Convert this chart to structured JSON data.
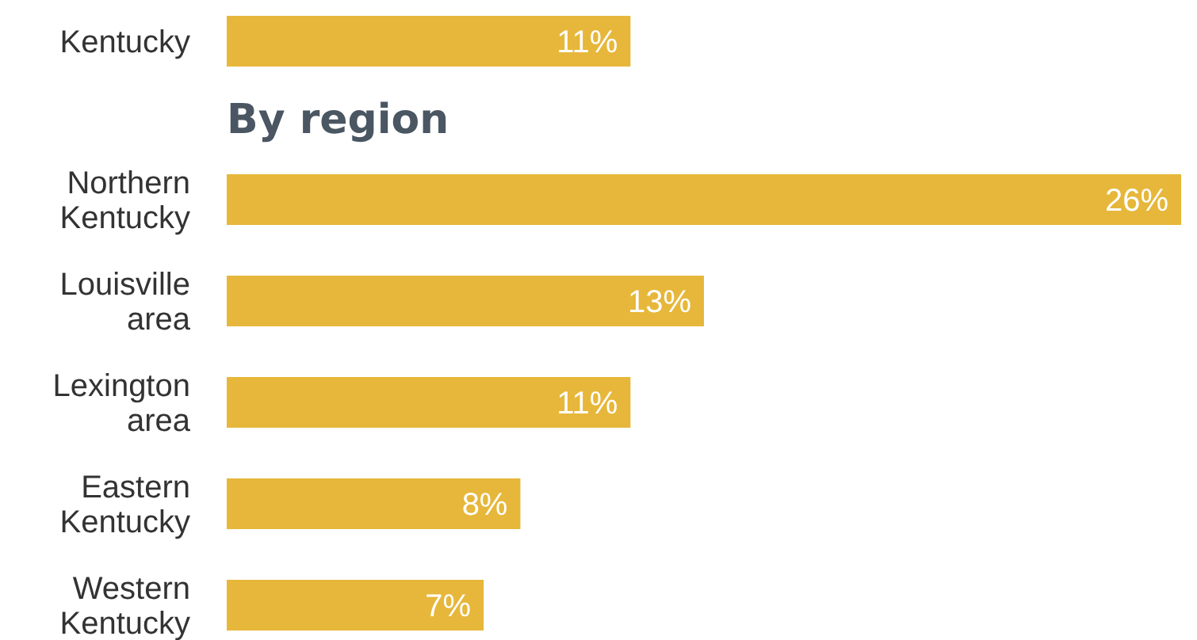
{
  "chart_data": [
    {
      "type": "bar",
      "orientation": "horizontal",
      "categories": [
        "Kentucky"
      ],
      "values": [
        11
      ],
      "value_labels": [
        "11%"
      ],
      "color": "#e6b73a",
      "tick_labels": "y"
    },
    {
      "type": "bar",
      "orientation": "horizontal",
      "title": "By region",
      "categories": [
        "Northern Kentucky",
        "Louisville area",
        "Lexington area",
        "Eastern Kentucky",
        "Western Kentucky"
      ],
      "values": [
        26,
        13,
        11,
        8,
        7
      ],
      "value_labels": [
        "26%",
        "13%",
        "11%",
        "8%",
        "7%"
      ],
      "color": "#e6b73a",
      "tick_labels": "y"
    }
  ]
}
